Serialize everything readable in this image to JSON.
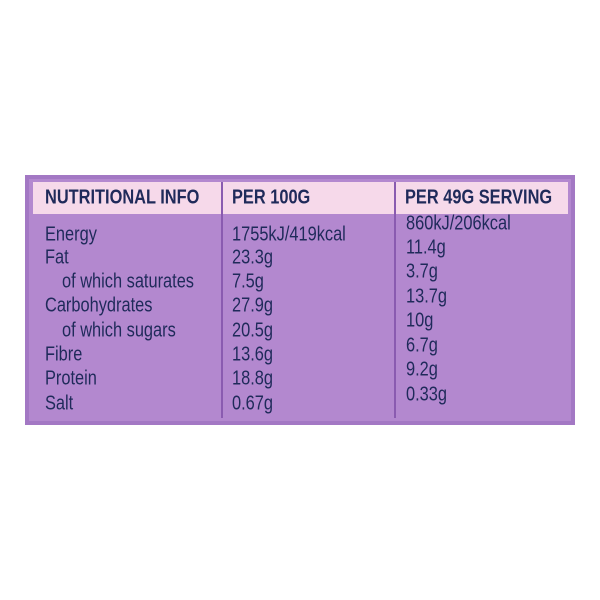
{
  "table": {
    "header": [
      "NUTRITIONAL INFO",
      "PER 100G",
      "PER 49G SERVING"
    ],
    "rows": [
      [
        "Energy",
        "1755kJ/419kcal",
        "860kJ/206kcal"
      ],
      [
        "Fat",
        "23.3g",
        "11.4g"
      ],
      [
        "of which saturates",
        "7.5g",
        "3.7g"
      ],
      [
        "Carbohydrates",
        "27.9g",
        "13.7g"
      ],
      [
        "of which sugars",
        "20.5g",
        "10g"
      ],
      [
        "Fibre",
        "13.6g",
        "6.7g"
      ],
      [
        "Protein",
        "18.8g",
        "9.2g"
      ],
      [
        "Salt",
        "0.67g",
        "0.33g"
      ]
    ]
  }
}
